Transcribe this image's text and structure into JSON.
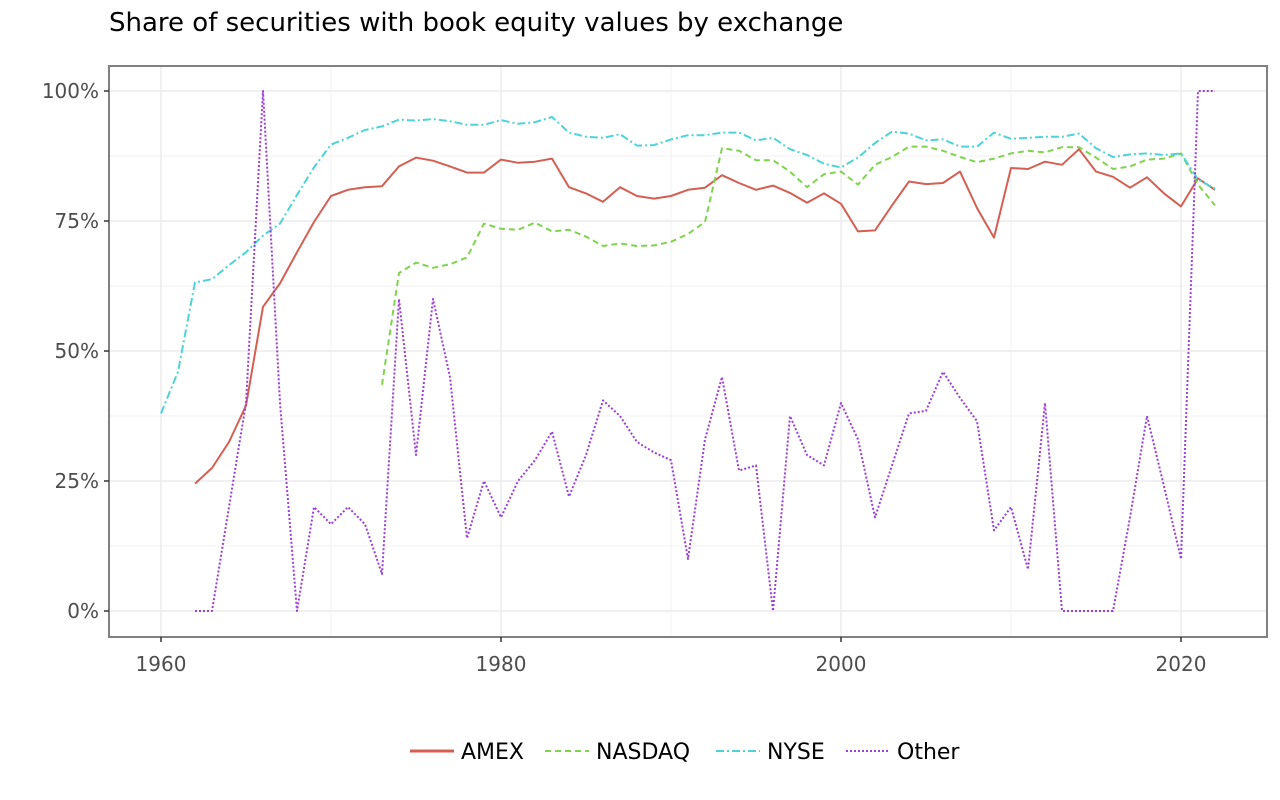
{
  "chart_data": {
    "type": "line",
    "title": "Share of securities with book equity values by exchange",
    "xlabel": "",
    "ylabel": "",
    "xlim": [
      1960,
      2022
    ],
    "ylim": [
      0,
      1
    ],
    "x_ticks": [
      1960,
      1980,
      2000,
      2020
    ],
    "x_tick_labels": [
      "1960",
      "1980",
      "2000",
      "2020"
    ],
    "y_ticks": [
      0,
      0.25,
      0.5,
      0.75,
      1.0
    ],
    "y_tick_labels": [
      "0%",
      "25%",
      "50%",
      "75%",
      "100%"
    ],
    "grid": true,
    "legend_position": "bottom",
    "series": [
      {
        "name": "AMEX",
        "color": "#d45f52",
        "dash": "solid",
        "x": [
          1962,
          1963,
          1964,
          1965,
          1966,
          1967,
          1968,
          1969,
          1970,
          1971,
          1972,
          1973,
          1974,
          1975,
          1976,
          1977,
          1978,
          1979,
          1980,
          1981,
          1982,
          1983,
          1984,
          1985,
          1986,
          1987,
          1988,
          1989,
          1990,
          1991,
          1992,
          1993,
          1994,
          1995,
          1996,
          1997,
          1998,
          1999,
          2000,
          2001,
          2002,
          2003,
          2004,
          2005,
          2006,
          2007,
          2008,
          2009,
          2010,
          2011,
          2012,
          2013,
          2014,
          2015,
          2016,
          2017,
          2018,
          2019,
          2020,
          2021,
          2022
        ],
        "values": [
          0.245,
          0.275,
          0.325,
          0.395,
          0.585,
          0.63,
          0.69,
          0.748,
          0.798,
          0.81,
          0.815,
          0.817,
          0.855,
          0.872,
          0.866,
          0.855,
          0.843,
          0.843,
          0.868,
          0.862,
          0.864,
          0.87,
          0.815,
          0.803,
          0.787,
          0.815,
          0.798,
          0.793,
          0.798,
          0.81,
          0.814,
          0.838,
          0.823,
          0.81,
          0.818,
          0.804,
          0.785,
          0.803,
          0.783,
          0.73,
          0.732,
          0.78,
          0.826,
          0.821,
          0.823,
          0.845,
          0.775,
          0.718,
          0.852,
          0.85,
          0.864,
          0.858,
          0.888,
          0.845,
          0.835,
          0.814,
          0.834,
          0.803,
          0.778,
          0.832,
          0.81
        ]
      },
      {
        "name": "NASDAQ",
        "color": "#7fd34e",
        "dash": "dashed",
        "x": [
          1973,
          1974,
          1975,
          1976,
          1977,
          1978,
          1979,
          1980,
          1981,
          1982,
          1983,
          1984,
          1985,
          1986,
          1987,
          1988,
          1989,
          1990,
          1991,
          1992,
          1993,
          1994,
          1995,
          1996,
          1997,
          1998,
          1999,
          2000,
          2001,
          2002,
          2003,
          2004,
          2005,
          2006,
          2007,
          2008,
          2009,
          2010,
          2011,
          2012,
          2013,
          2014,
          2015,
          2016,
          2017,
          2018,
          2019,
          2020,
          2021,
          2022
        ],
        "values": [
          0.435,
          0.65,
          0.67,
          0.66,
          0.667,
          0.68,
          0.745,
          0.735,
          0.733,
          0.747,
          0.73,
          0.733,
          0.72,
          0.702,
          0.707,
          0.702,
          0.703,
          0.71,
          0.725,
          0.748,
          0.89,
          0.885,
          0.867,
          0.867,
          0.845,
          0.815,
          0.84,
          0.845,
          0.82,
          0.858,
          0.873,
          0.893,
          0.893,
          0.885,
          0.873,
          0.863,
          0.87,
          0.88,
          0.885,
          0.882,
          0.892,
          0.892,
          0.872,
          0.85,
          0.855,
          0.868,
          0.87,
          0.88,
          0.82,
          0.78
        ]
      },
      {
        "name": "NYSE",
        "color": "#4dd3d9",
        "dash": "dashdot",
        "x": [
          1960,
          1961,
          1962,
          1963,
          1964,
          1965,
          1966,
          1967,
          1968,
          1969,
          1970,
          1971,
          1972,
          1973,
          1974,
          1975,
          1976,
          1977,
          1978,
          1979,
          1980,
          1981,
          1982,
          1983,
          1984,
          1985,
          1986,
          1987,
          1988,
          1989,
          1990,
          1991,
          1992,
          1993,
          1994,
          1995,
          1996,
          1997,
          1998,
          1999,
          2000,
          2001,
          2002,
          2003,
          2004,
          2005,
          2006,
          2007,
          2008,
          2009,
          2010,
          2011,
          2012,
          2013,
          2014,
          2015,
          2016,
          2017,
          2018,
          2019,
          2020,
          2021,
          2022
        ],
        "values": [
          0.38,
          0.46,
          0.632,
          0.638,
          0.665,
          0.69,
          0.722,
          0.745,
          0.8,
          0.853,
          0.897,
          0.91,
          0.925,
          0.932,
          0.945,
          0.943,
          0.946,
          0.942,
          0.935,
          0.935,
          0.944,
          0.937,
          0.94,
          0.95,
          0.92,
          0.912,
          0.91,
          0.917,
          0.895,
          0.896,
          0.907,
          0.915,
          0.915,
          0.92,
          0.92,
          0.905,
          0.91,
          0.888,
          0.877,
          0.86,
          0.853,
          0.872,
          0.9,
          0.922,
          0.918,
          0.905,
          0.907,
          0.893,
          0.893,
          0.92,
          0.908,
          0.91,
          0.912,
          0.912,
          0.918,
          0.89,
          0.873,
          0.878,
          0.88,
          0.877,
          0.88,
          0.83,
          0.812
        ]
      },
      {
        "name": "Other",
        "color": "#9b3fd9",
        "dash": "dotted",
        "x": [
          1962,
          1963,
          1964,
          1965,
          1966,
          1967,
          1968,
          1969,
          1970,
          1971,
          1972,
          1973,
          1974,
          1975,
          1976,
          1977,
          1978,
          1979,
          1980,
          1981,
          1982,
          1983,
          1984,
          1985,
          1986,
          1987,
          1988,
          1989,
          1990,
          1991,
          1992,
          1993,
          1994,
          1995,
          1996,
          1997,
          1998,
          1999,
          2000,
          2001,
          2002,
          2003,
          2004,
          2005,
          2006,
          2007,
          2008,
          2009,
          2010,
          2011,
          2012,
          2013,
          2014,
          2015,
          2016,
          2017,
          2018,
          2019,
          2020,
          2021,
          2022
        ],
        "values": [
          0.0,
          0.0,
          0.2,
          0.4,
          1.0,
          0.4,
          0.0,
          0.2,
          0.167,
          0.2,
          0.167,
          0.071,
          0.6,
          0.3,
          0.6,
          0.45,
          0.14,
          0.25,
          0.18,
          0.25,
          0.29,
          0.345,
          0.22,
          0.3,
          0.405,
          0.375,
          0.325,
          0.305,
          0.29,
          0.1,
          0.33,
          0.45,
          0.27,
          0.28,
          0.0,
          0.375,
          0.3,
          0.28,
          0.4,
          0.33,
          0.18,
          0.28,
          0.38,
          0.385,
          0.46,
          0.41,
          0.365,
          0.155,
          0.2,
          0.08,
          0.4,
          0.0,
          0.0,
          0.0,
          0.0,
          0.18,
          0.375,
          0.24,
          0.1,
          1.0,
          1.0
        ]
      }
    ]
  }
}
